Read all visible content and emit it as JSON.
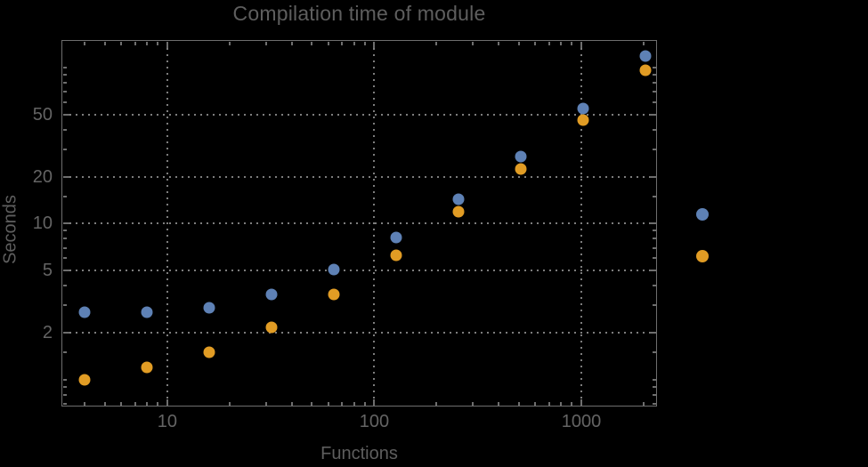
{
  "title": "Compilation time of module",
  "axes": {
    "xlabel": "Functions",
    "ylabel": "Seconds"
  },
  "chart_data": {
    "type": "scatter",
    "title": "Compilation time of module",
    "xlabel": "Functions",
    "ylabel": "Seconds",
    "x_scale": "log",
    "y_scale": "log",
    "xlim": [
      3.08,
      2320
    ],
    "ylim": [
      0.67,
      151
    ],
    "x_ticks": {
      "values": [
        10,
        100,
        1000
      ],
      "labels": [
        "10",
        "100",
        "1000"
      ]
    },
    "y_ticks": {
      "values": [
        2,
        5,
        10,
        20,
        50
      ],
      "labels": [
        "2",
        "5",
        "10",
        "20",
        "50"
      ]
    },
    "grid": "dotted gray lines at labeled ticks",
    "frame": true,
    "background_color": "#000000",
    "text_color": "#5e5e5e",
    "x": [
      4,
      8,
      16,
      32,
      64,
      128,
      256,
      512,
      1024,
      2048
    ],
    "series": [
      {
        "name": "blue-series",
        "color": "#5E81B5",
        "values": [
          2.7,
          2.7,
          2.9,
          3.5,
          5.1,
          8.2,
          14.4,
          26.8,
          55,
          119
        ]
      },
      {
        "name": "orange-series",
        "color": "#E19C24",
        "values": [
          1.0,
          1.2,
          1.5,
          2.15,
          3.5,
          6.3,
          11.9,
          22.5,
          46,
          97
        ]
      }
    ],
    "legend": {
      "position": "right of plot, markers only (no visible label text)",
      "markers": [
        {
          "name": "blue-series",
          "color": "#5E81B5"
        },
        {
          "name": "orange-series",
          "color": "#E19C24"
        }
      ]
    }
  }
}
